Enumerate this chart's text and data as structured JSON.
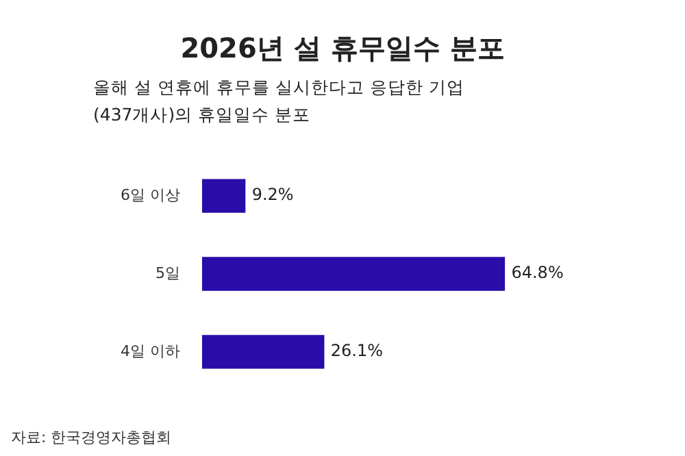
{
  "chart_data": {
    "type": "bar",
    "orientation": "horizontal",
    "title": "2026년 설 휴무일수 분포",
    "subtitle": "올해 설 연휴에 휴무를 실시한다고 응답한 기업\n(437개사)의 휴일일수 분포",
    "categories": [
      "6일 이상",
      "5일",
      "4일 이하"
    ],
    "values": [
      9.2,
      64.8,
      26.1
    ],
    "value_labels": [
      "9.2%",
      "64.8%",
      "26.1%"
    ],
    "color": "#2a0ca8",
    "annotations": [
      "자료: 한국경영자총협회"
    ]
  }
}
